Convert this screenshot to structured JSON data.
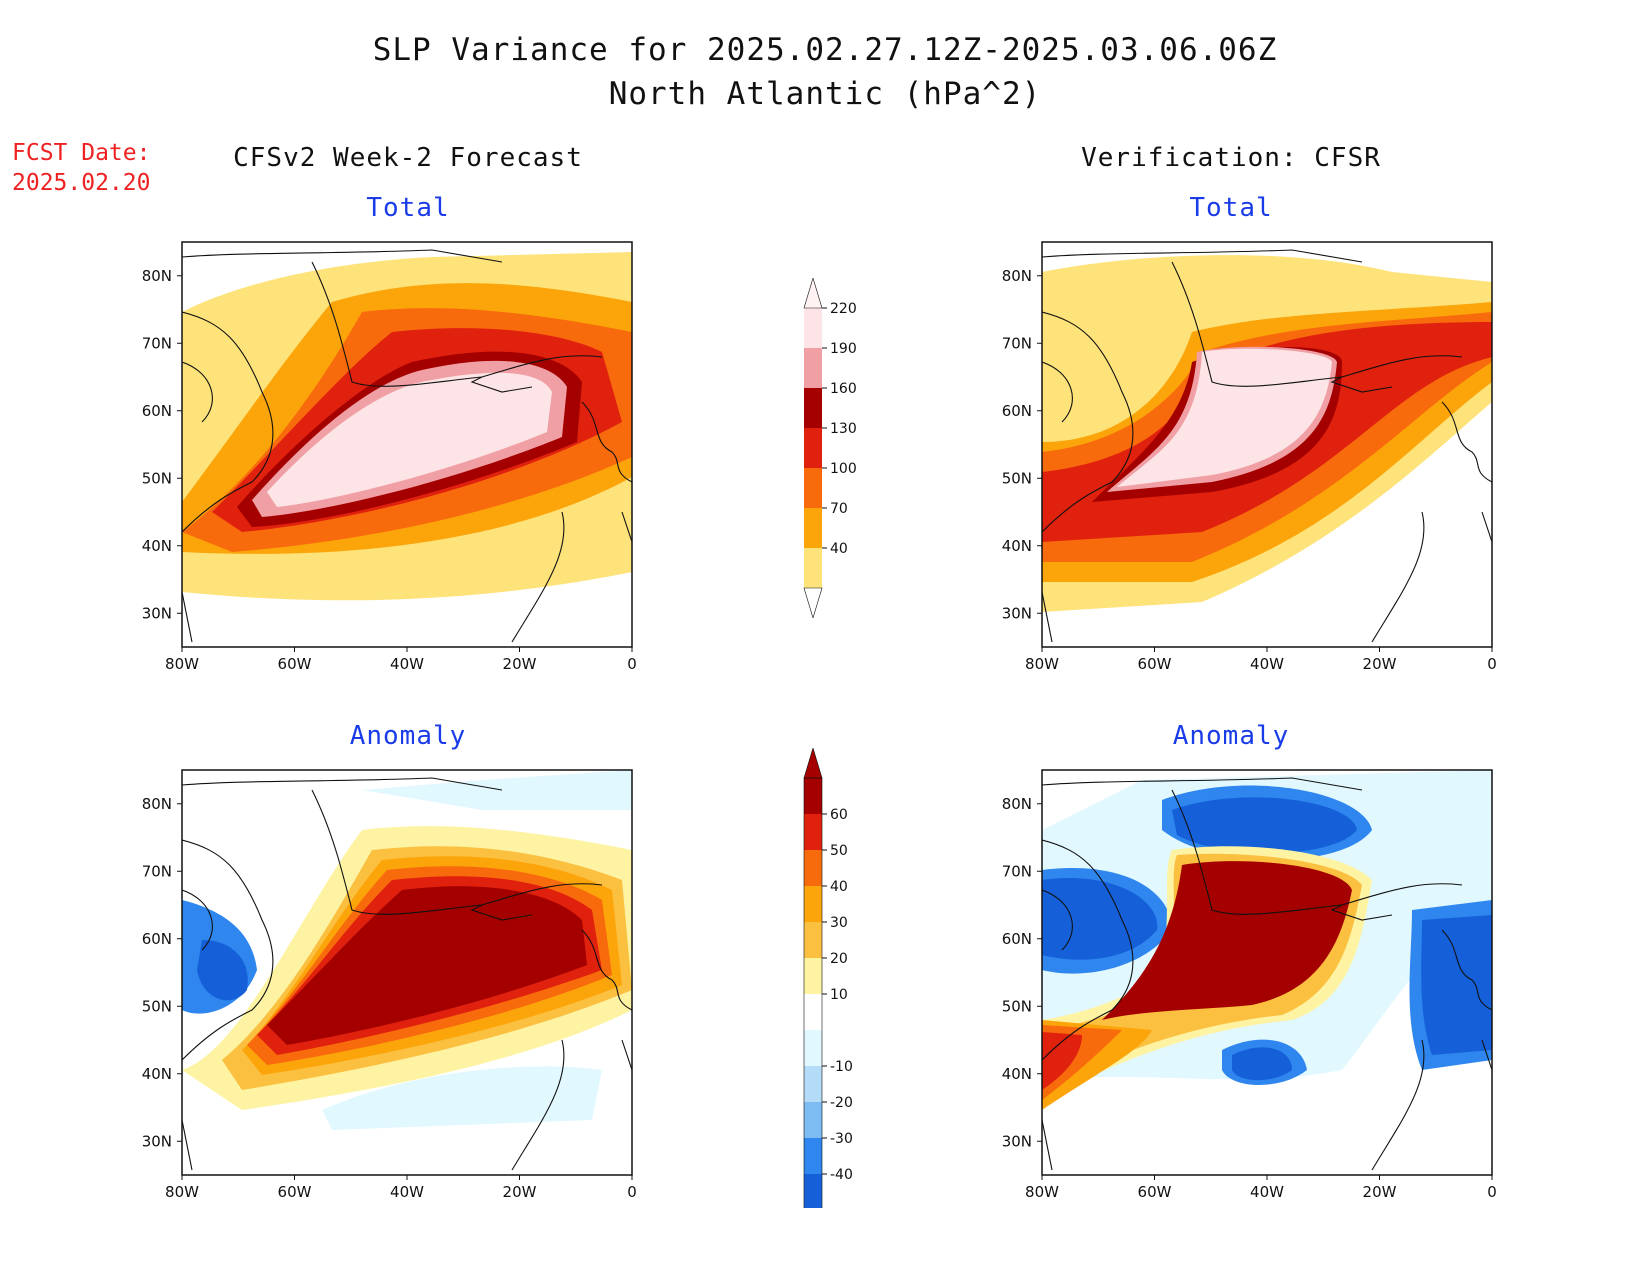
{
  "title": {
    "line1": "SLP Variance for 2025.02.27.12Z-2025.03.06.06Z",
    "line2": "North Atlantic (hPa^2)"
  },
  "fcst_date": {
    "label": "FCST Date:",
    "value": "2025.02.20"
  },
  "columns": {
    "left": "CFSv2 Week-2 Forecast",
    "right": "Verification: CFSR"
  },
  "panels": [
    {
      "title": "Total",
      "field": "total",
      "source": "forecast"
    },
    {
      "title": "Total",
      "field": "total",
      "source": "verification"
    },
    {
      "title": "Anomaly",
      "field": "anomaly",
      "source": "forecast"
    },
    {
      "title": "Anomaly",
      "field": "anomaly",
      "source": "verification"
    }
  ],
  "axes": {
    "lon_labels": [
      "80W",
      "60W",
      "40W",
      "20W",
      "0"
    ],
    "lat_labels": [
      "30N",
      "40N",
      "50N",
      "60N",
      "70N",
      "80N"
    ],
    "lon_range": [
      -80,
      0
    ],
    "lat_range": [
      25,
      85
    ]
  },
  "colorbars": {
    "total": {
      "levels": [
        "40",
        "70",
        "100",
        "130",
        "160",
        "190",
        "220"
      ],
      "colors": [
        "#fde37a",
        "#fca50a",
        "#f86b0c",
        "#e0210e",
        "#a50000",
        "#f0a0a4",
        "#fde4e6"
      ]
    },
    "anomaly": {
      "levels": [
        "-40",
        "-30",
        "-20",
        "-10",
        "10",
        "20",
        "30",
        "40",
        "50",
        "60"
      ],
      "colors": [
        "#1560d8",
        "#2e86ee",
        "#7cbcf2",
        "#b4dcf8",
        "#e2f8ff",
        "#ffffff",
        "#fdf3a2",
        "#fcc040",
        "#fca50a",
        "#f86b0c",
        "#e0210e",
        "#a50000"
      ]
    }
  }
}
